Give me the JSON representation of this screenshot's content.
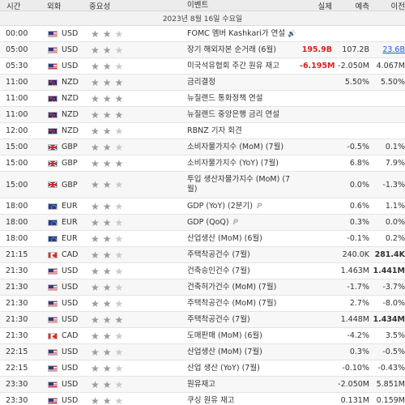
{
  "header": {
    "time": "시간",
    "currency": "외화",
    "importance": "중요성",
    "event": "이벤트",
    "actual": "실제",
    "forecast": "예측",
    "previous": "이전"
  },
  "date_label": "2023년 8월 16일 수요일",
  "icons": {
    "star": "★",
    "speaker": "🔊",
    "preliminary": "P"
  },
  "colors": {
    "negative_bold": "#dd1f1f",
    "revised_link": "#1f5fd6",
    "header_bg": "#ececec"
  },
  "rows": [
    {
      "time": "00:00",
      "cur": "USD",
      "ev": "FOMC 멤버 Kashkari가 연설",
      "act": "",
      "fc": "",
      "pr": ""
    },
    {
      "time": "05:00",
      "cur": "USD",
      "ev": "장기 해외자본 순거래 (6월)",
      "act": "195.9B",
      "fc": "107.2B",
      "pr": "23.6B"
    },
    {
      "time": "05:30",
      "cur": "USD",
      "ev": "미국석유협회 주간 원유 재고",
      "act": "-6.195M",
      "fc": "-2.050M",
      "pr": "4.067M"
    },
    {
      "time": "11:00",
      "cur": "NZD",
      "ev": "금리결정",
      "act": "",
      "fc": "5.50%",
      "pr": "5.50%"
    },
    {
      "time": "11:00",
      "cur": "NZD",
      "ev": "뉴질랜드 통화정책 연설",
      "act": "",
      "fc": "",
      "pr": ""
    },
    {
      "time": "11:00",
      "cur": "NZD",
      "ev": "뉴질랜드 중앙은행 금리 연설",
      "act": "",
      "fc": "",
      "pr": ""
    },
    {
      "time": "12:00",
      "cur": "NZD",
      "ev": "RBNZ 기자 회견",
      "act": "",
      "fc": "",
      "pr": ""
    },
    {
      "time": "15:00",
      "cur": "GBP",
      "ev": "소비자물가지수 (MoM) (7월)",
      "act": "",
      "fc": "-0.5%",
      "pr": "0.1%"
    },
    {
      "time": "15:00",
      "cur": "GBP",
      "ev": "소비자물가지수 (YoY) (7월)",
      "act": "",
      "fc": "6.8%",
      "pr": "7.9%"
    },
    {
      "time": "15:00",
      "cur": "GBP",
      "ev": "투입 생산자물가지수 (MoM) (7월)",
      "act": "",
      "fc": "0.0%",
      "pr": "-1.3%"
    },
    {
      "time": "18:00",
      "cur": "EUR",
      "ev": "GDP (YoY) (2분기)",
      "act": "",
      "fc": "0.6%",
      "pr": "1.1%"
    },
    {
      "time": "18:00",
      "cur": "EUR",
      "ev": "GDP (QoQ)",
      "act": "",
      "fc": "0.3%",
      "pr": "0.0%"
    },
    {
      "time": "18:00",
      "cur": "EUR",
      "ev": "산업생산 (MoM) (6월)",
      "act": "",
      "fc": "-0.1%",
      "pr": "0.2%"
    },
    {
      "time": "21:15",
      "cur": "CAD",
      "ev": "주택착공건수 (7월)",
      "act": "",
      "fc": "240.0K",
      "pr": "281.4K"
    },
    {
      "time": "21:30",
      "cur": "USD",
      "ev": "건축승인건수 (7월)",
      "act": "",
      "fc": "1.463M",
      "pr": "1.441M"
    },
    {
      "time": "21:30",
      "cur": "USD",
      "ev": "건축허가건수 (MoM) (7월)",
      "act": "",
      "fc": "-1.7%",
      "pr": "-3.7%"
    },
    {
      "time": "21:30",
      "cur": "USD",
      "ev": "주택착공건수 (MoM) (7월)",
      "act": "",
      "fc": "2.7%",
      "pr": "-8.0%"
    },
    {
      "time": "21:30",
      "cur": "USD",
      "ev": "주택착공건수 (7월)",
      "act": "",
      "fc": "1.448M",
      "pr": "1.434M"
    },
    {
      "time": "21:30",
      "cur": "CAD",
      "ev": "도매판매 (MoM) (6월)",
      "act": "",
      "fc": "-4.2%",
      "pr": "3.5%"
    },
    {
      "time": "22:15",
      "cur": "USD",
      "ev": "산업생산 (MoM) (7월)",
      "act": "",
      "fc": "0.3%",
      "pr": "-0.5%"
    },
    {
      "time": "22:15",
      "cur": "USD",
      "ev": "산업 생산 (YoY) (7월)",
      "act": "",
      "fc": "-0.10%",
      "pr": "-0.43%"
    },
    {
      "time": "23:30",
      "cur": "USD",
      "ev": "원유재고",
      "act": "",
      "fc": "-2.050M",
      "pr": "5.851M"
    },
    {
      "time": "23:30",
      "cur": "USD",
      "ev": "쿠싱 원유 재고",
      "act": "",
      "fc": "0.131M",
      "pr": "0.159M"
    }
  ]
}
